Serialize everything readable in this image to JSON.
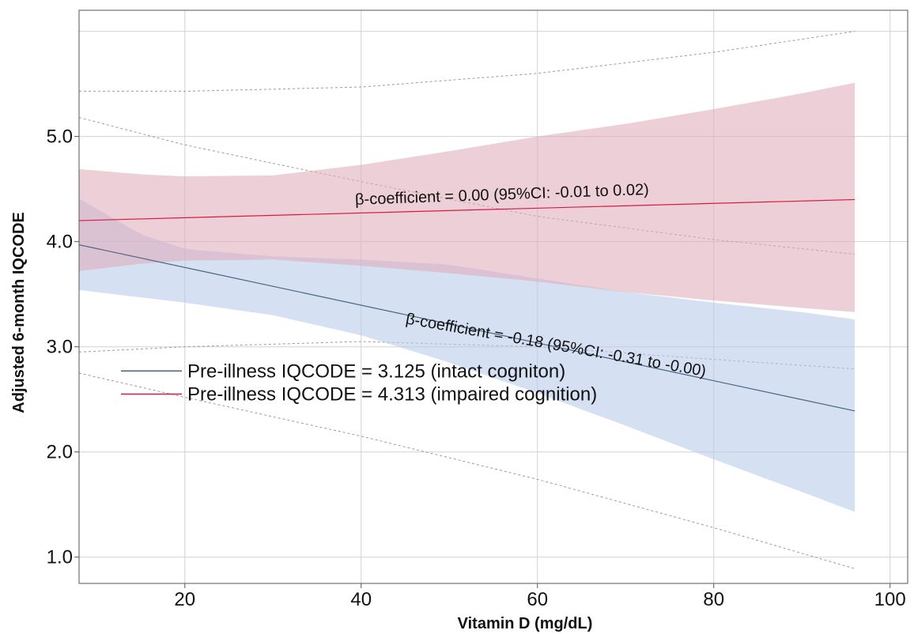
{
  "chart_data": {
    "type": "line",
    "title": "",
    "xlabel": "Vitamin D (mg/dL)",
    "ylabel": "Adjusted 6-month IQCODE",
    "xlim": [
      8,
      102
    ],
    "ylim": [
      0.75,
      6.2
    ],
    "x_ticks": [
      "20",
      "40",
      "60",
      "80",
      "100"
    ],
    "x_tick_values": [
      20,
      40,
      60,
      80,
      100
    ],
    "y_ticks": [
      "1.0",
      "2.0",
      "3.0",
      "4.0",
      "5.0"
    ],
    "y_tick_values": [
      1.0,
      2.0,
      3.0,
      4.0,
      5.0
    ],
    "grid": true,
    "legend_position": "bottom-left",
    "series": [
      {
        "name": "Pre-illness IQCODE = 3.125 (intact cogniton)",
        "color": "#4a6380",
        "band_color": "#b9c9ea",
        "x": [
          8,
          96
        ],
        "y": [
          3.97,
          2.39
        ],
        "ci_x": [
          8,
          15,
          20,
          30,
          40,
          50,
          60,
          70,
          80,
          90,
          96
        ],
        "ci_lower": [
          3.54,
          3.47,
          3.42,
          3.3,
          3.11,
          2.85,
          2.56,
          2.25,
          1.93,
          1.62,
          1.43
        ],
        "ci_upper": [
          4.41,
          4.07,
          3.93,
          3.86,
          3.83,
          3.78,
          3.65,
          3.52,
          3.42,
          3.33,
          3.26
        ]
      },
      {
        "name": "Pre-illness IQCODE = 4.313 (impaired cognition)",
        "color": "#d81b3c",
        "band_color": "#deacba",
        "x": [
          8,
          96
        ],
        "y": [
          4.2,
          4.4
        ],
        "ci_x": [
          8,
          15,
          20,
          30,
          40,
          50,
          60,
          70,
          80,
          90,
          96
        ],
        "ci_lower": [
          3.72,
          3.79,
          3.82,
          3.83,
          3.77,
          3.7,
          3.62,
          3.52,
          3.44,
          3.37,
          3.33
        ],
        "ci_upper": [
          4.69,
          4.64,
          4.62,
          4.63,
          4.73,
          4.86,
          5.0,
          5.12,
          5.26,
          5.41,
          5.51
        ]
      }
    ],
    "reference_curves": [
      {
        "x": [
          8,
          20,
          40,
          60,
          80,
          96
        ],
        "y": [
          5.43,
          5.43,
          5.47,
          5.6,
          5.8,
          6.0
        ]
      },
      {
        "x": [
          8,
          20,
          40,
          60,
          80,
          96
        ],
        "y": [
          5.18,
          4.92,
          4.57,
          4.24,
          4.02,
          3.88
        ]
      },
      {
        "x": [
          8,
          20,
          40,
          60,
          80,
          96
        ],
        "y": [
          2.95,
          3.0,
          3.05,
          3.0,
          2.88,
          2.79
        ]
      },
      {
        "x": [
          8,
          20,
          40,
          60,
          80,
          96
        ],
        "y": [
          2.75,
          2.52,
          2.15,
          1.74,
          1.28,
          0.89
        ]
      }
    ],
    "annotations": [
      {
        "text": "β-coefficient = 0.00 (95%CI: -0.01 to 0.02)",
        "x": 56,
        "y": 4.4,
        "angle": -2
      },
      {
        "text": "β-coefficient = -0.18 (95%CI: -0.31 to -0.00)",
        "x": 62,
        "y": 2.97,
        "angle": 10
      }
    ]
  }
}
